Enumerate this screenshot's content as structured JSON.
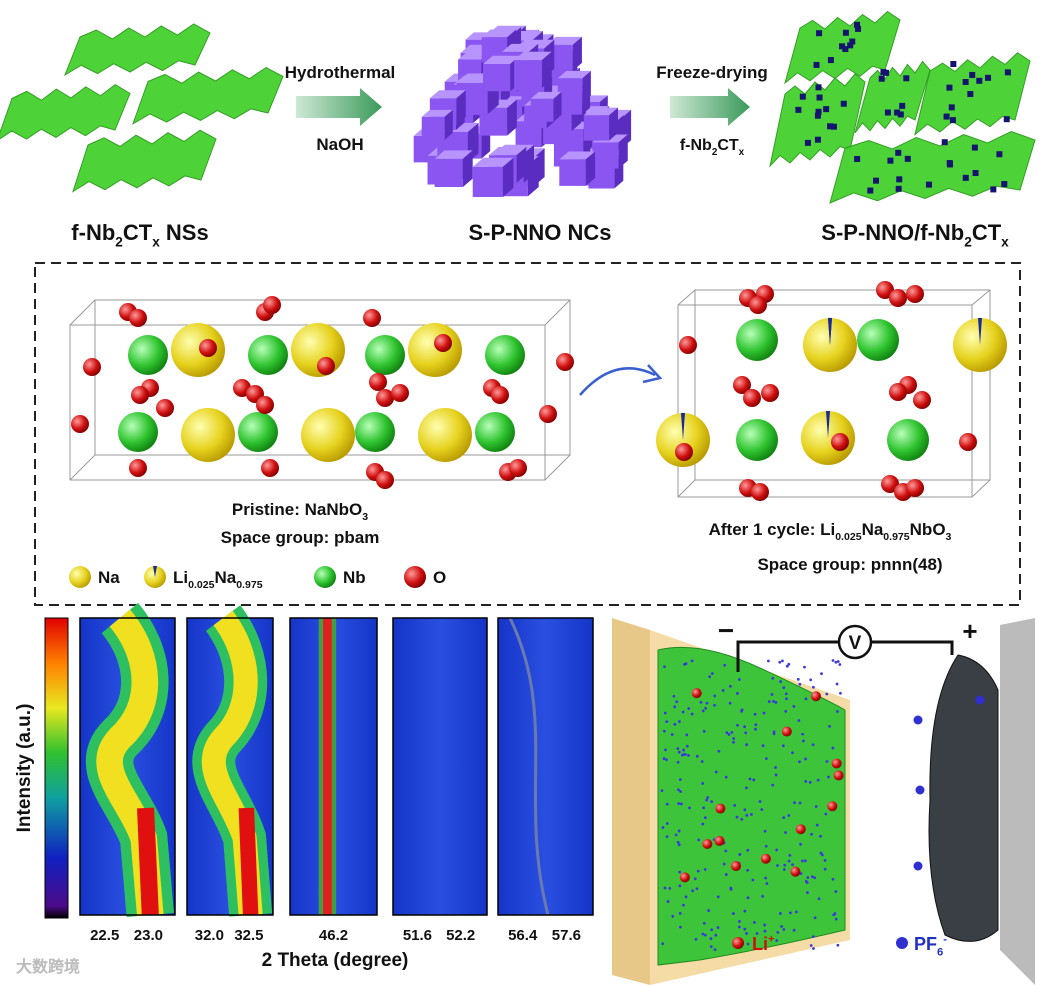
{
  "synthesis": {
    "step1": {
      "top": "Hydrothermal",
      "bottom": "NaOH"
    },
    "step2": {
      "top": "Freeze-drying",
      "bottom": [
        "f-Nb",
        "2",
        "CT",
        "x"
      ]
    },
    "products": [
      [
        "f-Nb",
        "2",
        "CT",
        "x",
        " NSs"
      ],
      [
        "S-P-NNO NCs"
      ],
      [
        "S-P-NNO/f-Nb",
        "2",
        "CT",
        "x"
      ]
    ]
  },
  "structures": {
    "pristine": {
      "formula": [
        "Pristine: NaNbO",
        "3"
      ],
      "space_group": "Space group: pbam"
    },
    "cycled": {
      "formula": [
        "After 1 cycle: Li",
        "0.025",
        "Na",
        "0.975",
        "NbO",
        "3"
      ],
      "space_group": "Space group: pnnn(48)"
    }
  },
  "legend": [
    [
      "Na"
    ],
    [
      "Li",
      "0.025",
      "Na",
      "0.975"
    ],
    [
      "Nb"
    ],
    [
      "O"
    ]
  ],
  "xrd": {
    "colorbar_label": "Intensity (a.u.)",
    "xlabel": "2 Theta (degree)",
    "panels": [
      [
        "22.5",
        "23.0"
      ],
      [
        "32.0",
        "32.5"
      ],
      [
        "46.2"
      ],
      [
        "51.6",
        "52.2"
      ],
      [
        "56.4",
        "57.6"
      ]
    ]
  },
  "cell": {
    "voltmeter": "V",
    "negative": "−",
    "positive": "+",
    "ions": [
      [
        "Li",
        "+"
      ],
      [
        "PF",
        "6",
        "-"
      ]
    ]
  },
  "watermark": "大数跨境"
}
